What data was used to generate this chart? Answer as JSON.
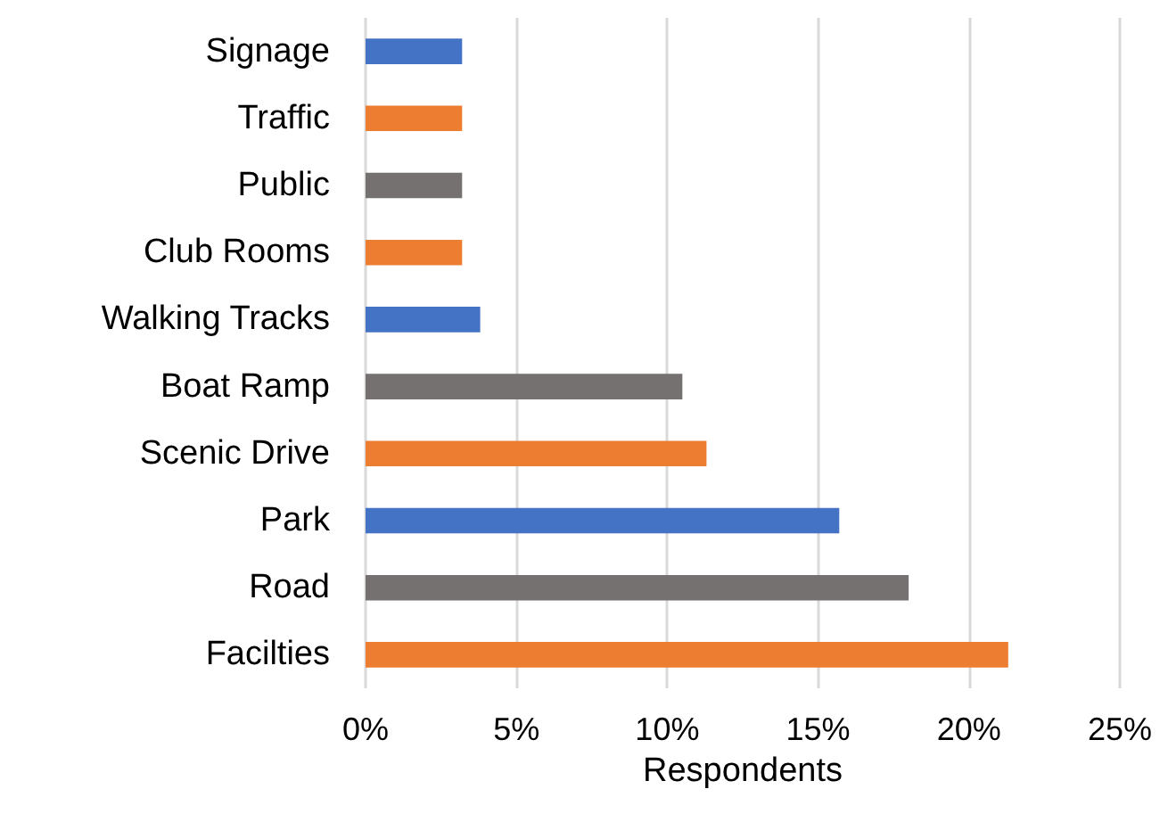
{
  "chart_data": {
    "type": "bar",
    "orientation": "horizontal",
    "xlabel": "Respondents",
    "categories": [
      "Signage",
      "Traffic",
      "Public",
      "Club Rooms",
      "Walking Tracks",
      "Boat Ramp",
      "Scenic Drive",
      "Park",
      "Road",
      "Facilties"
    ],
    "values": [
      3.2,
      3.2,
      3.2,
      3.2,
      3.8,
      10.5,
      11.3,
      15.7,
      18.0,
      21.3
    ],
    "colors": [
      "#4472c4",
      "#ed7d31",
      "#767171",
      "#ed7d31",
      "#4472c4",
      "#767171",
      "#ed7d31",
      "#4472c4",
      "#767171",
      "#ed7d31"
    ],
    "xlim": [
      0,
      25
    ],
    "xticks": [
      {
        "value": 0,
        "label": "0%"
      },
      {
        "value": 5,
        "label": "5%"
      },
      {
        "value": 10,
        "label": "10%"
      },
      {
        "value": 15,
        "label": "15%"
      },
      {
        "value": 20,
        "label": "20%"
      },
      {
        "value": 25,
        "label": "25%"
      }
    ],
    "grid": "x"
  }
}
